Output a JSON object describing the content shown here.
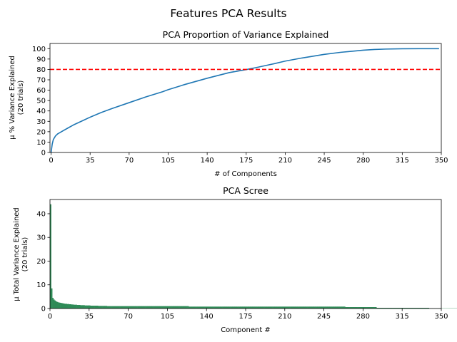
{
  "figure": {
    "suptitle": "Features PCA Results"
  },
  "chart_data": [
    {
      "type": "line",
      "title": "PCA Proportion of Variance Explained",
      "xlabel": "# of Components",
      "ylabel_lines": [
        "μ % Variance Explained",
        "(20 trials)"
      ],
      "xlim": [
        -1,
        350
      ],
      "ylim": [
        0,
        105
      ],
      "xticks": [
        0,
        35,
        70,
        105,
        140,
        175,
        210,
        245,
        280,
        315,
        350
      ],
      "yticks": [
        0,
        10,
        20,
        30,
        40,
        50,
        60,
        70,
        80,
        90,
        100
      ],
      "grid": false,
      "line_color": "#1f77b4",
      "series": [
        {
          "x": [
            0,
            1,
            2,
            4,
            6,
            10,
            15,
            20,
            25,
            30,
            35,
            45,
            55,
            70,
            85,
            100,
            105,
            120,
            140,
            160,
            175,
            185,
            200,
            210,
            225,
            245,
            260,
            270,
            280,
            290,
            300,
            315,
            330,
            348
          ],
          "y": [
            0,
            8,
            12.5,
            16,
            18,
            20.5,
            23.5,
            26.5,
            29,
            31.5,
            34,
            38.5,
            42.5,
            48,
            53.5,
            58.5,
            60.5,
            65.5,
            71.5,
            77,
            79.8,
            82,
            85.5,
            88,
            91,
            94.5,
            96.5,
            97.5,
            98.5,
            99.2,
            99.6,
            99.9,
            100,
            100
          ]
        }
      ],
      "threshold": {
        "y": 80,
        "color": "#ff0000",
        "style": "dashed"
      }
    },
    {
      "type": "bar",
      "title": "PCA Scree",
      "xlabel": "Component #",
      "ylabel_lines": [
        "μ Total Variance Explained",
        "(20 trials)"
      ],
      "xlim": [
        0,
        350
      ],
      "ylim": [
        0,
        46
      ],
      "xticks": [
        0,
        35,
        70,
        105,
        140,
        175,
        210,
        245,
        280,
        315,
        350
      ],
      "yticks": [
        0,
        10,
        20,
        30,
        40
      ],
      "bar_color": "#2e8b57",
      "values": [
        44,
        8.5,
        4.5,
        3.8,
        3.4,
        3.0,
        2.8,
        2.6,
        2.5,
        2.4,
        2.3,
        2.2,
        2.1,
        2.0,
        2.0,
        1.9,
        1.9,
        1.8,
        1.8,
        1.7,
        1.7,
        1.6,
        1.6,
        1.6,
        1.5,
        1.5,
        1.5,
        1.4,
        1.4,
        1.4,
        1.4,
        1.3,
        1.3,
        1.3,
        1.3,
        1.3,
        1.2,
        1.2,
        1.2,
        1.2,
        1.2,
        1.2,
        1.2,
        1.1,
        1.1,
        1.1,
        1.1,
        1.1,
        1.1,
        1.1,
        1.1,
        1.0,
        1.0,
        1.0,
        1.0,
        1.0,
        1.0,
        1.0,
        1.0,
        1.0,
        1.0,
        1.0,
        1.0,
        1.0,
        1.0,
        1.0,
        1.0,
        1.0,
        1.0,
        1.0,
        1.0,
        1.0,
        1.0,
        1.0,
        1.0,
        1.0,
        1.0,
        1.0,
        1.0,
        1.0,
        1.0,
        1.0,
        1.0,
        1.0,
        1.0,
        1.0,
        1.0,
        1.0,
        1.0,
        1.0,
        1.0,
        1.0,
        1.0,
        1.0,
        1.0,
        1.0,
        1.0,
        1.0,
        1.0,
        1.0,
        1.0,
        1.0,
        1.0,
        1.0,
        1.0,
        1.0,
        1.0,
        1.0,
        1.0,
        1.0,
        1.0,
        1.0,
        1.0,
        1.0,
        1.0,
        1.0,
        1.0,
        1.0,
        1.0,
        1.0,
        1.0,
        1.0,
        1.0,
        1.0,
        0.8,
        0.8,
        0.8,
        0.8,
        0.8,
        0.8,
        0.8,
        0.8,
        0.8,
        0.8,
        0.8,
        0.8,
        0.8,
        0.8,
        0.8,
        0.8,
        0.8,
        0.8,
        0.8,
        0.8,
        0.8,
        0.8,
        0.8,
        0.8,
        0.8,
        0.8,
        0.8,
        0.8,
        0.8,
        0.8,
        0.8,
        0.8,
        0.8,
        0.8,
        0.8,
        0.8,
        0.8,
        0.8,
        0.8,
        0.8,
        0.8,
        0.8,
        0.8,
        0.8,
        0.8,
        0.8,
        0.8,
        0.8,
        0.8,
        0.8,
        0.8,
        0.8,
        0.8,
        0.8,
        0.8,
        0.8,
        0.8,
        0.8,
        0.8,
        0.8,
        0.8,
        0.8,
        0.8,
        0.8,
        0.8,
        0.8,
        0.8,
        0.8,
        0.8,
        0.8,
        0.8,
        0.8,
        0.8,
        0.8,
        0.8,
        0.8,
        0.8,
        0.8,
        0.8,
        0.8,
        0.8,
        0.8,
        0.8,
        0.8,
        0.8,
        0.8,
        0.8,
        0.8,
        0.8,
        0.8,
        0.8,
        0.8,
        0.8,
        0.8,
        0.8,
        0.8,
        0.8,
        0.8,
        0.8,
        0.8,
        0.8,
        0.8,
        0.8,
        0.8,
        0.8,
        0.8,
        0.8,
        0.8,
        0.8,
        0.8,
        0.8,
        0.8,
        0.8,
        0.8,
        0.8,
        0.8,
        0.8,
        0.8,
        0.8,
        0.8,
        0.8,
        0.8,
        0.8,
        0.8,
        0.8,
        0.8,
        0.8,
        0.8,
        0.8,
        0.8,
        0.8,
        0.8,
        0.8,
        0.8,
        0.8,
        0.8,
        0.8,
        0.8,
        0.8,
        0.8,
        0.6,
        0.6,
        0.6,
        0.6,
        0.6,
        0.6,
        0.6,
        0.6,
        0.6,
        0.6,
        0.6,
        0.6,
        0.6,
        0.6,
        0.6,
        0.6,
        0.6,
        0.6,
        0.6,
        0.6,
        0.6,
        0.6,
        0.6,
        0.6,
        0.6,
        0.6,
        0.6,
        0.6,
        0.3,
        0.3,
        0.3,
        0.3,
        0.3,
        0.3,
        0.3,
        0.3,
        0.3,
        0.3,
        0.3,
        0.3,
        0.3,
        0.3,
        0.3,
        0.3,
        0.3,
        0.3,
        0.3,
        0.3,
        0.3,
        0.3,
        0.3,
        0.3,
        0.3,
        0.3,
        0.3,
        0.3,
        0.3,
        0.3,
        0.3,
        0.3,
        0.3,
        0.3,
        0.3,
        0.3,
        0.3,
        0.3,
        0.3,
        0.3,
        0.3,
        0.3,
        0.3,
        0.3,
        0.3,
        0.3,
        0.3,
        0.1,
        0.1,
        0.1,
        0.1,
        0.1,
        0.1,
        0.1,
        0.1,
        0.1,
        0.1,
        0.1,
        0.1,
        0.1,
        0.1,
        0.1,
        0.1,
        0.1,
        0.1,
        0.1,
        0.1,
        0.1,
        0.1,
        0.1,
        0.1,
        0.1,
        0.1,
        0.1,
        0.1,
        0.1,
        0.1,
        0.05,
        0.05,
        0.05,
        0.05,
        0.05
      ]
    }
  ]
}
